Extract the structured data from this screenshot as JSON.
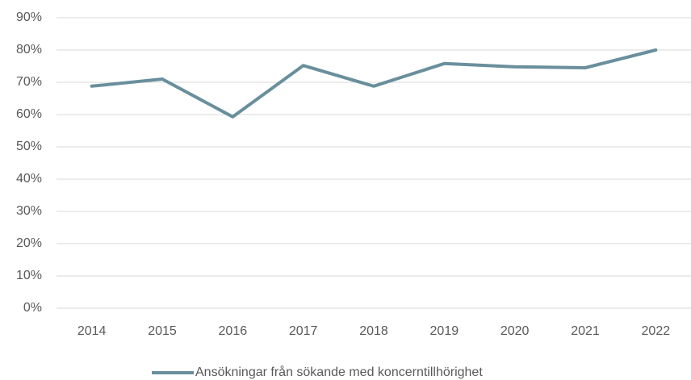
{
  "chart_data": {
    "type": "line",
    "categories": [
      "2014",
      "2015",
      "2016",
      "2017",
      "2018",
      "2019",
      "2020",
      "2021",
      "2022"
    ],
    "series": [
      {
        "name": "Ansökningar från sökande med koncerntillhörighet",
        "color": "#6a8f9c",
        "values": [
          68.8,
          71,
          59.3,
          75.2,
          68.8,
          75.8,
          74.8,
          74.5,
          80
        ]
      }
    ],
    "ylim": [
      0,
      90
    ],
    "yticks": [
      {
        "value": 0,
        "label": "0%"
      },
      {
        "value": 10,
        "label": "10%"
      },
      {
        "value": 20,
        "label": "20%"
      },
      {
        "value": 30,
        "label": "30%"
      },
      {
        "value": 40,
        "label": "40%"
      },
      {
        "value": 50,
        "label": "50%"
      },
      {
        "value": 60,
        "label": "60%"
      },
      {
        "value": 70,
        "label": "70%"
      },
      {
        "value": 80,
        "label": "80%"
      },
      {
        "value": 90,
        "label": "90%"
      }
    ],
    "grid": true,
    "legend": "bottom"
  }
}
